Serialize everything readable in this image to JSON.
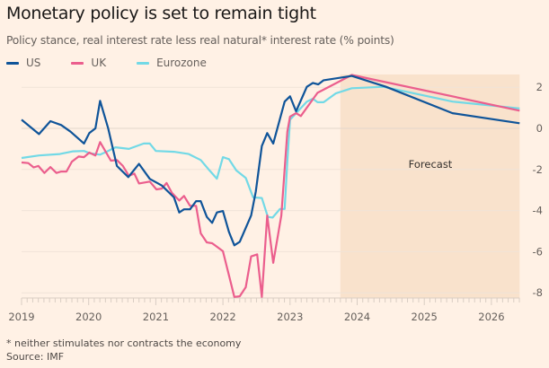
{
  "title": "Monetary policy is set to remain tight",
  "subtitle": "Policy stance, real interest rate less real natural* interest rate (% points)",
  "footnote": "* neither stimulates nor contracts the economy",
  "source": "Source: IMF",
  "chart_data": {
    "type": "line",
    "title": "Monetary policy is set to remain tight",
    "subtitle": "Policy stance, real interest rate less real natural* interest rate (% points)",
    "xlabel": "",
    "ylabel": "",
    "xlim": [
      2019,
      2026.42
    ],
    "ylim": [
      -8.2,
      2.6
    ],
    "x_ticks": [
      "2019",
      "2020",
      "2021",
      "2022",
      "2023",
      "2024",
      "2025",
      "2026"
    ],
    "y_ticks": [
      "2",
      "0",
      "-2",
      "-4",
      "-6",
      "-8"
    ],
    "y_axis_side": "right",
    "grid": true,
    "legend_placement": "top-left",
    "annotation": {
      "label": "Forecast",
      "from": 2023.75,
      "to": 2026.42,
      "color": "#f9e2cc"
    },
    "series": [
      {
        "name": "US",
        "color": "#0f5499",
        "points": [
          [
            2019.0,
            0.42
          ],
          [
            2019.26,
            -0.28
          ],
          [
            2019.43,
            0.35
          ],
          [
            2019.59,
            0.16
          ],
          [
            2019.73,
            -0.16
          ],
          [
            2019.93,
            -0.74
          ],
          [
            2020.01,
            -0.23
          ],
          [
            2020.1,
            0.0
          ],
          [
            2020.17,
            1.34
          ],
          [
            2020.29,
            0.0
          ],
          [
            2020.42,
            -1.83
          ],
          [
            2020.59,
            -2.37
          ],
          [
            2020.75,
            -1.73
          ],
          [
            2020.91,
            -2.46
          ],
          [
            2021.09,
            -2.78
          ],
          [
            2021.27,
            -3.36
          ],
          [
            2021.35,
            -4.09
          ],
          [
            2021.42,
            -3.94
          ],
          [
            2021.51,
            -3.94
          ],
          [
            2021.6,
            -3.54
          ],
          [
            2021.67,
            -3.54
          ],
          [
            2021.76,
            -4.31
          ],
          [
            2021.84,
            -4.6
          ],
          [
            2021.91,
            -4.09
          ],
          [
            2022.0,
            -4.02
          ],
          [
            2022.09,
            -5.04
          ],
          [
            2022.17,
            -5.69
          ],
          [
            2022.25,
            -5.52
          ],
          [
            2022.42,
            -4.24
          ],
          [
            2022.49,
            -3.07
          ],
          [
            2022.58,
            -0.86
          ],
          [
            2022.66,
            -0.23
          ],
          [
            2022.75,
            -0.74
          ],
          [
            2022.92,
            1.3
          ],
          [
            2023.0,
            1.56
          ],
          [
            2023.09,
            0.83
          ],
          [
            2023.25,
            2.02
          ],
          [
            2023.34,
            2.21
          ],
          [
            2023.42,
            2.14
          ],
          [
            2023.5,
            2.34
          ],
          [
            2023.92,
            2.55
          ],
          [
            2024.43,
            2.02
          ],
          [
            2025.42,
            0.74
          ],
          [
            2026.42,
            0.25
          ]
        ]
      },
      {
        "name": "UK",
        "color": "#eb5e8d",
        "points": [
          [
            2019.0,
            -1.66
          ],
          [
            2019.1,
            -1.69
          ],
          [
            2019.18,
            -1.9
          ],
          [
            2019.25,
            -1.83
          ],
          [
            2019.34,
            -2.17
          ],
          [
            2019.43,
            -1.88
          ],
          [
            2019.52,
            -2.17
          ],
          [
            2019.59,
            -2.1
          ],
          [
            2019.67,
            -2.1
          ],
          [
            2019.75,
            -1.62
          ],
          [
            2019.85,
            -1.37
          ],
          [
            2019.93,
            -1.4
          ],
          [
            2020.01,
            -1.18
          ],
          [
            2020.1,
            -1.32
          ],
          [
            2020.17,
            -0.67
          ],
          [
            2020.33,
            -1.57
          ],
          [
            2020.42,
            -1.54
          ],
          [
            2020.51,
            -1.83
          ],
          [
            2020.6,
            -2.31
          ],
          [
            2020.68,
            -2.2
          ],
          [
            2020.75,
            -2.68
          ],
          [
            2020.91,
            -2.59
          ],
          [
            2021.01,
            -2.97
          ],
          [
            2021.09,
            -2.93
          ],
          [
            2021.16,
            -2.66
          ],
          [
            2021.24,
            -3.14
          ],
          [
            2021.35,
            -3.51
          ],
          [
            2021.42,
            -3.29
          ],
          [
            2021.51,
            -3.77
          ],
          [
            2021.6,
            -3.77
          ],
          [
            2021.67,
            -5.11
          ],
          [
            2021.76,
            -5.55
          ],
          [
            2021.84,
            -5.59
          ],
          [
            2021.91,
            -5.76
          ],
          [
            2022.0,
            -5.98
          ],
          [
            2022.09,
            -7.15
          ],
          [
            2022.17,
            -8.2
          ],
          [
            2022.25,
            -8.17
          ],
          [
            2022.34,
            -7.73
          ],
          [
            2022.42,
            -6.23
          ],
          [
            2022.51,
            -6.13
          ],
          [
            2022.58,
            -8.2
          ],
          [
            2022.66,
            -4.24
          ],
          [
            2022.75,
            -6.54
          ],
          [
            2022.87,
            -4.24
          ],
          [
            2022.96,
            -0.16
          ],
          [
            2023.0,
            0.57
          ],
          [
            2023.09,
            0.74
          ],
          [
            2023.16,
            0.6
          ],
          [
            2023.41,
            1.73
          ],
          [
            2023.92,
            2.6
          ],
          [
            2026.42,
            0.86
          ]
        ]
      },
      {
        "name": "Eurozone",
        "color": "#72d9e6",
        "points": [
          [
            2019.0,
            -1.44
          ],
          [
            2019.26,
            -1.32
          ],
          [
            2019.57,
            -1.25
          ],
          [
            2019.77,
            -1.12
          ],
          [
            2019.93,
            -1.1
          ],
          [
            2020.02,
            -1.22
          ],
          [
            2020.17,
            -1.28
          ],
          [
            2020.26,
            -1.15
          ],
          [
            2020.4,
            -0.92
          ],
          [
            2020.6,
            -1.0
          ],
          [
            2020.82,
            -0.74
          ],
          [
            2020.91,
            -0.74
          ],
          [
            2021.0,
            -1.1
          ],
          [
            2021.27,
            -1.14
          ],
          [
            2021.49,
            -1.25
          ],
          [
            2021.67,
            -1.54
          ],
          [
            2021.8,
            -2.05
          ],
          [
            2021.91,
            -2.45
          ],
          [
            2022.0,
            -1.4
          ],
          [
            2022.09,
            -1.5
          ],
          [
            2022.2,
            -2.05
          ],
          [
            2022.34,
            -2.41
          ],
          [
            2022.45,
            -3.36
          ],
          [
            2022.58,
            -3.39
          ],
          [
            2022.67,
            -4.31
          ],
          [
            2022.74,
            -4.34
          ],
          [
            2022.85,
            -3.92
          ],
          [
            2022.92,
            -3.92
          ],
          [
            2022.96,
            -1.6
          ],
          [
            2023.0,
            0.42
          ],
          [
            2023.25,
            1.3
          ],
          [
            2023.34,
            1.44
          ],
          [
            2023.41,
            1.27
          ],
          [
            2023.5,
            1.27
          ],
          [
            2023.68,
            1.7
          ],
          [
            2023.92,
            1.95
          ],
          [
            2024.39,
            2.02
          ],
          [
            2025.42,
            1.3
          ],
          [
            2026.42,
            0.97
          ]
        ]
      }
    ]
  }
}
